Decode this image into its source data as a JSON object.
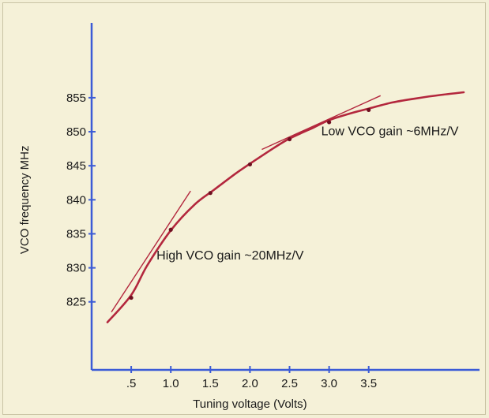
{
  "chart_data": {
    "type": "line",
    "title": "",
    "xlabel": "Tuning voltage (Volts)",
    "ylabel": "VCO frequency MHz",
    "xlim": [
      0,
      4.9
    ],
    "ylim": [
      815,
      866
    ],
    "x_ticks": [
      0.5,
      1.0,
      1.5,
      2.0,
      2.5,
      3.0,
      3.5
    ],
    "x_tick_labels": [
      ".5",
      "1.0",
      "1.5",
      "2.0",
      "2.5",
      "3.0",
      "3.5"
    ],
    "y_ticks": [
      825,
      830,
      835,
      840,
      845,
      850,
      855
    ],
    "y_tick_labels": [
      "825",
      "830",
      "835",
      "840",
      "845",
      "850",
      "855"
    ],
    "grid": false,
    "series": [
      {
        "type": "curve",
        "x": [
          0.2,
          0.5,
          0.7,
          1.0,
          1.3,
          1.55,
          1.8,
          2.0,
          2.3,
          2.5,
          2.8,
          3.0,
          3.3,
          3.5,
          3.8,
          4.1,
          4.4,
          4.7
        ],
        "y": [
          822,
          826,
          830.3,
          835.5,
          839.3,
          841.5,
          843.7,
          845.3,
          847.6,
          849.0,
          850.6,
          851.7,
          852.8,
          853.4,
          854.3,
          854.9,
          855.4,
          855.8
        ]
      },
      {
        "type": "points",
        "x": [
          0.5,
          1.0,
          1.5,
          2.0,
          2.5,
          3.0,
          3.5
        ],
        "y": [
          825.6,
          835.6,
          841.0,
          845.2,
          848.9,
          851.4,
          853.2
        ]
      },
      {
        "type": "tangent",
        "x": [
          0.25,
          1.25
        ],
        "y": [
          823.5,
          841.3
        ]
      },
      {
        "type": "tangent",
        "x": [
          2.15,
          3.65
        ],
        "y": [
          847.4,
          855.3
        ]
      }
    ],
    "annotations": [
      {
        "text": "High VCO gain ~20MHz/V",
        "x": 0.82,
        "y": 831.2
      },
      {
        "text": "Low VCO gain ~6MHz/V",
        "x": 2.9,
        "y": 849.5
      }
    ],
    "colors": {
      "axis": "#3b5bd6",
      "curve": "#b3273d",
      "tangent": "#b3273d",
      "points": "#6e1020",
      "background": "#f3efd6"
    }
  }
}
